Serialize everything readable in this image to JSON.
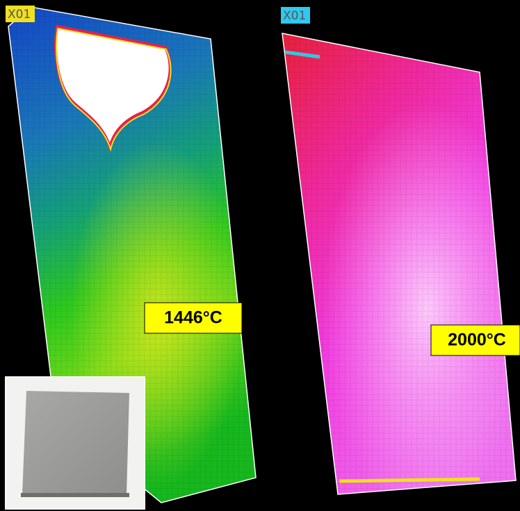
{
  "panels": [
    {
      "tag": "X01",
      "temperature": "1446°C"
    },
    {
      "tag": "X01",
      "temperature": "2000°C"
    }
  ]
}
